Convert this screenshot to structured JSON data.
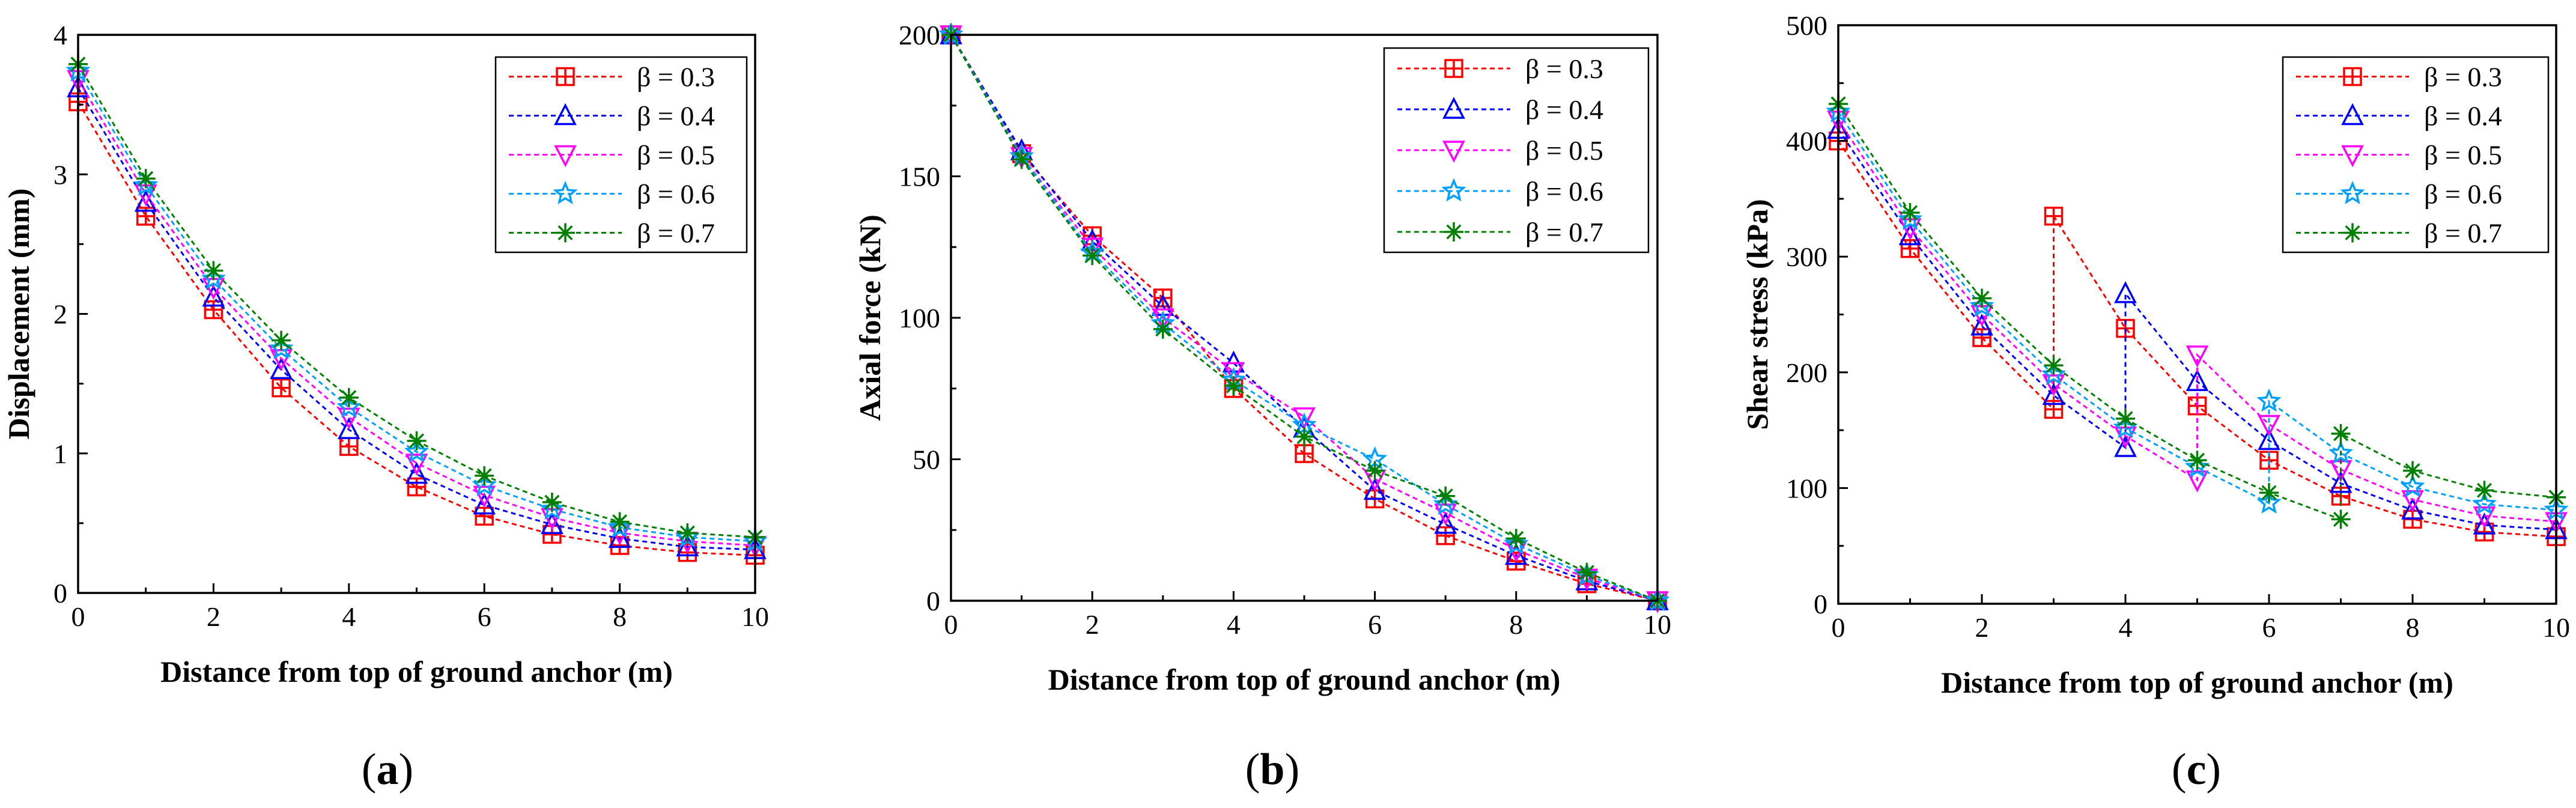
{
  "chart_data": [
    {
      "id": "a",
      "type": "line",
      "title": "",
      "panel_label": "(a)",
      "xlabel": "Distance from top of ground anchor (m)",
      "ylabel": "Displacement (mm)",
      "xlim": [
        0,
        10
      ],
      "ylim": [
        0,
        4
      ],
      "xticks": [
        "0",
        "2",
        "4",
        "6",
        "8",
        "10"
      ],
      "yticks": [
        "0",
        "1",
        "2",
        "3",
        "4"
      ],
      "legend_position": "top-right",
      "x": [
        0,
        1,
        2,
        3,
        4,
        5,
        6,
        7,
        8,
        9,
        10
      ],
      "series": [
        {
          "name": "β = 0.3",
          "color": "#ff0000",
          "marker": "square-plus",
          "values": [
            3.52,
            2.7,
            2.03,
            1.47,
            1.05,
            0.76,
            0.55,
            0.42,
            0.34,
            0.29,
            0.27
          ]
        },
        {
          "name": "β = 0.4",
          "color": "#0000ff",
          "marker": "triangle-up",
          "values": [
            3.62,
            2.8,
            2.12,
            1.6,
            1.17,
            0.85,
            0.63,
            0.49,
            0.39,
            0.33,
            0.31
          ]
        },
        {
          "name": "β = 0.5",
          "color": "#ff00ff",
          "marker": "triangle-down",
          "values": [
            3.68,
            2.86,
            2.19,
            1.68,
            1.26,
            0.93,
            0.7,
            0.54,
            0.43,
            0.37,
            0.34
          ]
        },
        {
          "name": "β = 0.6",
          "color": "#00a0ff",
          "marker": "star",
          "values": [
            3.74,
            2.92,
            2.25,
            1.75,
            1.33,
            1.01,
            0.77,
            0.6,
            0.47,
            0.4,
            0.37
          ]
        },
        {
          "name": "β = 0.7",
          "color": "#008000",
          "marker": "asterisk",
          "values": [
            3.79,
            2.97,
            2.31,
            1.81,
            1.4,
            1.09,
            0.84,
            0.65,
            0.51,
            0.43,
            0.4
          ]
        }
      ]
    },
    {
      "id": "b",
      "type": "line",
      "title": "",
      "panel_label": "(b)",
      "xlabel": "Distance from top of ground anchor (m)",
      "ylabel": "Axial force (kN)",
      "xlim": [
        0,
        10
      ],
      "ylim": [
        0,
        200
      ],
      "xticks": [
        "0",
        "2",
        "4",
        "6",
        "8",
        "10"
      ],
      "yticks": [
        "0",
        "50",
        "100",
        "150",
        "200"
      ],
      "legend_position": "top-right",
      "x": [
        0,
        1,
        2,
        3,
        4,
        5,
        6,
        7,
        8,
        9,
        10
      ],
      "series": [
        {
          "name": "β = 0.3",
          "color": "#ff0000",
          "marker": "square-plus",
          "values": [
            200,
            158,
            129,
            107,
            75,
            52,
            36,
            23,
            14,
            6,
            0
          ]
        },
        {
          "name": "β = 0.4",
          "color": "#0000ff",
          "marker": "triangle-up",
          "values": [
            200,
            159,
            127,
            104,
            84,
            61,
            39,
            27,
            16,
            7,
            0
          ]
        },
        {
          "name": "β = 0.5",
          "color": "#ff00ff",
          "marker": "triangle-down",
          "values": [
            200,
            157,
            125,
            100,
            81,
            65,
            43,
            31,
            18,
            8,
            0
          ]
        },
        {
          "name": "β = 0.6",
          "color": "#00a0ff",
          "marker": "star",
          "values": [
            200,
            157,
            123,
            98,
            78,
            62,
            50,
            34,
            20,
            9,
            0
          ]
        },
        {
          "name": "β = 0.7",
          "color": "#008000",
          "marker": "asterisk",
          "values": [
            200,
            156,
            122,
            96,
            76,
            58,
            46,
            37,
            22,
            10,
            0
          ]
        }
      ]
    },
    {
      "id": "c",
      "type": "line",
      "title": "",
      "panel_label": "(c)",
      "xlabel": "Distance from top of ground anchor (m)",
      "ylabel": "Shear stress (kPa)",
      "xlim": [
        0,
        10
      ],
      "ylim": [
        0,
        500
      ],
      "xticks": [
        "0",
        "2",
        "4",
        "6",
        "8",
        "10"
      ],
      "yticks": [
        "0",
        "100",
        "200",
        "300",
        "400",
        "500"
      ],
      "legend_position": "top-right",
      "series": [
        {
          "name": "β = 0.3",
          "color": "#ff0000",
          "marker": "square-plus",
          "x": [
            0,
            1,
            2,
            3,
            3,
            4,
            5,
            6,
            7,
            8,
            9,
            10
          ],
          "values": [
            400,
            307,
            230,
            168,
            335,
            238,
            171,
            124,
            93,
            73,
            62,
            58
          ]
        },
        {
          "name": "β = 0.4",
          "color": "#0000ff",
          "marker": "triangle-up",
          "x": [
            0,
            1,
            2,
            3,
            4,
            4,
            5,
            6,
            7,
            8,
            9,
            10
          ],
          "values": [
            410,
            318,
            240,
            180,
            135,
            268,
            192,
            141,
            104,
            81,
            68,
            64
          ]
        },
        {
          "name": "β = 0.5",
          "color": "#ff00ff",
          "marker": "triangle-down",
          "x": [
            0,
            1,
            2,
            3,
            4,
            5,
            5,
            6,
            7,
            8,
            9,
            10
          ],
          "values": [
            418,
            325,
            250,
            190,
            145,
            107,
            215,
            155,
            116,
            90,
            76,
            71
          ]
        },
        {
          "name": "β = 0.6",
          "color": "#00a0ff",
          "marker": "star",
          "x": [
            0,
            1,
            2,
            3,
            4,
            5,
            6,
            6,
            7,
            8,
            9,
            10
          ],
          "values": [
            425,
            332,
            257,
            198,
            152,
            118,
            87,
            175,
            130,
            101,
            86,
            81
          ]
        },
        {
          "name": "β = 0.7",
          "color": "#008000",
          "marker": "asterisk",
          "x": [
            0,
            1,
            2,
            3,
            4,
            5,
            6,
            7,
            7,
            8,
            9,
            10
          ],
          "values": [
            432,
            338,
            264,
            206,
            160,
            124,
            96,
            73,
            147,
            115,
            98,
            92
          ]
        }
      ]
    }
  ]
}
